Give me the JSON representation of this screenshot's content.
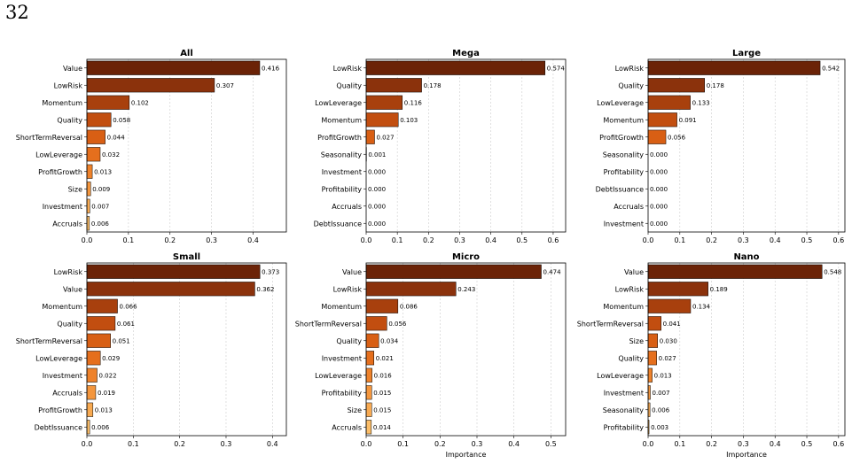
{
  "page_number": "32",
  "chart_data": [
    {
      "type": "bar",
      "orientation": "horizontal",
      "title": "All",
      "xlabel": "",
      "xlim": [
        0,
        0.48
      ],
      "xticks": [
        0.0,
        0.1,
        0.2,
        0.3,
        0.4
      ],
      "grid": "x-dashed",
      "categories": [
        "Value",
        "LowRisk",
        "Momentum",
        "Quality",
        "ShortTermReversal",
        "LowLeverage",
        "ProfitGrowth",
        "Size",
        "Investment",
        "Accruals"
      ],
      "values": [
        0.416,
        0.307,
        0.102,
        0.058,
        0.044,
        0.032,
        0.013,
        0.009,
        0.007,
        0.006
      ],
      "value_labels": [
        "0.416",
        "0.307",
        "0.102",
        "0.058",
        "0.044",
        "0.032",
        "0.013",
        "0.009",
        "0.007",
        "0.006"
      ]
    },
    {
      "type": "bar",
      "orientation": "horizontal",
      "title": "Mega",
      "xlabel": "",
      "xlim": [
        0,
        0.64
      ],
      "xticks": [
        0.0,
        0.1,
        0.2,
        0.3,
        0.4,
        0.5,
        0.6
      ],
      "grid": "x-dashed",
      "categories": [
        "LowRisk",
        "Quality",
        "LowLeverage",
        "Momentum",
        "ProfitGrowth",
        "Seasonality",
        "Investment",
        "Profitability",
        "Accruals",
        "DebtIssuance"
      ],
      "values": [
        0.574,
        0.178,
        0.116,
        0.103,
        0.027,
        0.001,
        0.0,
        0.0,
        0.0,
        0.0
      ],
      "value_labels": [
        "0.574",
        "0.178",
        "0.116",
        "0.103",
        "0.027",
        "0.001",
        "0.000",
        "0.000",
        "0.000",
        "0.000"
      ]
    },
    {
      "type": "bar",
      "orientation": "horizontal",
      "title": "Large",
      "xlabel": "",
      "xlim": [
        0,
        0.62
      ],
      "xticks": [
        0.0,
        0.1,
        0.2,
        0.3,
        0.4,
        0.5,
        0.6
      ],
      "grid": "x-dashed",
      "categories": [
        "LowRisk",
        "Quality",
        "LowLeverage",
        "Momentum",
        "ProfitGrowth",
        "Seasonality",
        "Profitability",
        "DebtIssuance",
        "Accruals",
        "Investment"
      ],
      "values": [
        0.542,
        0.178,
        0.133,
        0.091,
        0.056,
        0.0,
        0.0,
        0.0,
        0.0,
        0.0
      ],
      "value_labels": [
        "0.542",
        "0.178",
        "0.133",
        "0.091",
        "0.056",
        "0.000",
        "0.000",
        "0.000",
        "0.000",
        "0.000"
      ]
    },
    {
      "type": "bar",
      "orientation": "horizontal",
      "title": "Small",
      "xlabel": "",
      "xlim": [
        0,
        0.43
      ],
      "xticks": [
        0.0,
        0.1,
        0.2,
        0.3,
        0.4
      ],
      "grid": "x-dashed",
      "categories": [
        "LowRisk",
        "Value",
        "Momentum",
        "Quality",
        "ShortTermReversal",
        "LowLeverage",
        "Investment",
        "Accruals",
        "ProfitGrowth",
        "DebtIssuance"
      ],
      "values": [
        0.373,
        0.362,
        0.066,
        0.061,
        0.051,
        0.029,
        0.022,
        0.019,
        0.013,
        0.006
      ],
      "value_labels": [
        "0.373",
        "0.362",
        "0.066",
        "0.061",
        "0.051",
        "0.029",
        "0.022",
        "0.019",
        "0.013",
        "0.006"
      ]
    },
    {
      "type": "bar",
      "orientation": "horizontal",
      "title": "Micro",
      "xlabel": "Importance",
      "xlim": [
        0,
        0.54
      ],
      "xticks": [
        0.0,
        0.1,
        0.2,
        0.3,
        0.4,
        0.5
      ],
      "grid": "x-dashed",
      "categories": [
        "Value",
        "LowRisk",
        "Momentum",
        "ShortTermReversal",
        "Quality",
        "Investment",
        "LowLeverage",
        "Profitability",
        "Size",
        "Accruals"
      ],
      "values": [
        0.474,
        0.243,
        0.086,
        0.056,
        0.034,
        0.021,
        0.016,
        0.015,
        0.015,
        0.014
      ],
      "value_labels": [
        "0.474",
        "0.243",
        "0.086",
        "0.056",
        "0.034",
        "0.021",
        "0.016",
        "0.015",
        "0.015",
        "0.014"
      ]
    },
    {
      "type": "bar",
      "orientation": "horizontal",
      "title": "Nano",
      "xlabel": "Importance",
      "xlim": [
        0,
        0.62
      ],
      "xticks": [
        0.0,
        0.1,
        0.2,
        0.3,
        0.4,
        0.5,
        0.6
      ],
      "grid": "x-dashed",
      "categories": [
        "Value",
        "LowRisk",
        "Momentum",
        "ShortTermReversal",
        "Size",
        "Quality",
        "LowLeverage",
        "Investment",
        "Seasonality",
        "Profitability"
      ],
      "values": [
        0.548,
        0.189,
        0.134,
        0.041,
        0.03,
        0.027,
        0.013,
        0.007,
        0.006,
        0.003
      ],
      "value_labels": [
        "0.548",
        "0.189",
        "0.134",
        "0.041",
        "0.030",
        "0.027",
        "0.013",
        "0.007",
        "0.006",
        "0.003"
      ]
    }
  ],
  "palette": [
    "#6b2307",
    "#8b320c",
    "#a8400d",
    "#c24e10",
    "#d85f14",
    "#e56f1d",
    "#ee822b",
    "#f4963d",
    "#f8aa52",
    "#fbbd68"
  ],
  "colors": {
    "edge": "#000000",
    "grid": "#cccccc"
  }
}
